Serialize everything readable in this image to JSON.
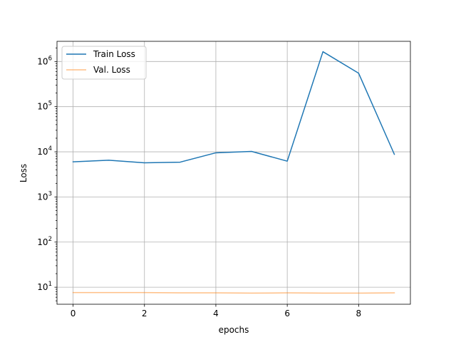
{
  "chart_data": {
    "type": "line",
    "xlabel": "epochs",
    "ylabel": "Loss",
    "yscale": "log",
    "grid": true,
    "legend_position": "top-left",
    "xlim": [
      -0.45,
      9.45
    ],
    "ylim": [
      4.2,
      2800000
    ],
    "x_ticks": [
      0,
      2,
      4,
      6,
      8
    ],
    "y_ticks": [
      {
        "value": 10,
        "exp": "1"
      },
      {
        "value": 100,
        "exp": "2"
      },
      {
        "value": 1000,
        "exp": "3"
      },
      {
        "value": 10000,
        "exp": "4"
      },
      {
        "value": 100000,
        "exp": "5"
      },
      {
        "value": 1000000,
        "exp": "6"
      }
    ],
    "x": [
      0,
      1,
      2,
      3,
      4,
      5,
      6,
      7,
      8,
      9
    ],
    "series": [
      {
        "name": "Train Loss",
        "color": "#1f77b4",
        "opacity": 1,
        "values": [
          6000,
          6500,
          5700,
          5900,
          9500,
          10200,
          6200,
          1650000,
          550000,
          8800
        ]
      },
      {
        "name": "Val. Loss",
        "color": "#ff7f0e",
        "opacity": 0.5,
        "values": [
          7.6,
          7.6,
          7.6,
          7.5,
          7.5,
          7.4,
          7.5,
          7.4,
          7.4,
          7.5
        ]
      }
    ]
  }
}
